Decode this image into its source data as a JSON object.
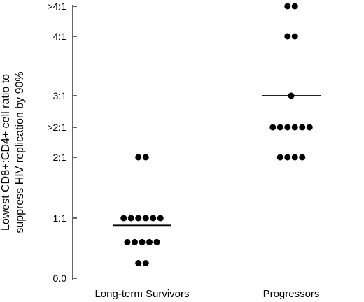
{
  "chart_data": {
    "type": "scatter",
    "ylabel_lines": [
      "Lowest CD8+:CD4+ cell ratio to",
      "suppress HIV replication by 90%"
    ],
    "y_ticks": [
      {
        "label": "0.0",
        "value": 0
      },
      {
        "label": "1:1",
        "value": 1
      },
      {
        "label": "2:1",
        "value": 2
      },
      {
        "label": ">2:1",
        "value": 2.5
      },
      {
        "label": "3:1",
        "value": 3
      },
      {
        "label": "4:1",
        "value": 4
      },
      {
        "label": ">4:1",
        "value": 4.5
      }
    ],
    "ylim": [
      0,
      4.5
    ],
    "categories": [
      "Long-term Survivors",
      "Progressors"
    ],
    "groups": [
      {
        "category": "Long-term Survivors",
        "points": [
          {
            "y": 2.0,
            "count": 2
          },
          {
            "y": 1.0,
            "count": 6
          },
          {
            "y": 0.6,
            "count": 5
          },
          {
            "y": 0.25,
            "count": 2
          }
        ],
        "median": 0.88
      },
      {
        "category": "Progressors",
        "points": [
          {
            "y": 4.5,
            "count": 2
          },
          {
            "y": 4.0,
            "count": 2
          },
          {
            "y": 3.0,
            "count": 1
          },
          {
            "y": 2.5,
            "count": 6
          },
          {
            "y": 2.0,
            "count": 4
          }
        ],
        "median": 3.0
      }
    ],
    "grid": false,
    "legend": "none"
  }
}
